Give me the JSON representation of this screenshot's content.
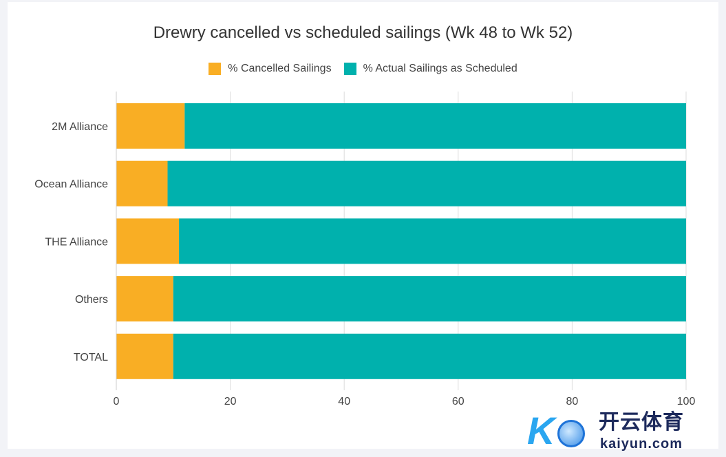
{
  "chart_data": {
    "type": "bar",
    "orientation": "horizontal",
    "stacked": true,
    "title": "Drewry cancelled vs scheduled sailings (Wk 48 to Wk 52)",
    "categories": [
      "2M Alliance",
      "Ocean Alliance",
      "THE Alliance",
      "Others",
      "TOTAL"
    ],
    "series": [
      {
        "name": "% Cancelled Sailings",
        "color": "#f9ae24",
        "values": [
          12,
          9,
          11,
          10,
          10
        ]
      },
      {
        "name": "% Actual Sailings as Scheduled",
        "color": "#00b1ad",
        "values": [
          88,
          91,
          89,
          90,
          90
        ]
      }
    ],
    "xlim": [
      0,
      100
    ],
    "xticks": [
      "0",
      "20",
      "40",
      "60",
      "80",
      "100"
    ],
    "xlabel": "",
    "ylabel": "",
    "grid": true,
    "legend_position": "top-center"
  },
  "watermark": {
    "brand_cn": "开云体育",
    "brand_en": "kaiyun.com",
    "logo_letter": "K"
  }
}
